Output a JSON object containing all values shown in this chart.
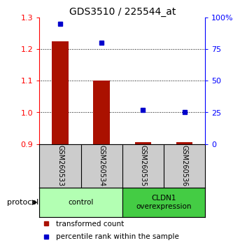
{
  "title": "GDS3510 / 225544_at",
  "samples": [
    "GSM260533",
    "GSM260534",
    "GSM260535",
    "GSM260536"
  ],
  "red_values": [
    1.225,
    1.1,
    0.905,
    0.905
  ],
  "blue_values": [
    95,
    80,
    27,
    25
  ],
  "red_baseline": 0.9,
  "ylim_left": [
    0.9,
    1.3
  ],
  "ylim_right": [
    0,
    100
  ],
  "yticks_left": [
    0.9,
    1.0,
    1.1,
    1.2,
    1.3
  ],
  "yticks_right": [
    0,
    25,
    50,
    75,
    100
  ],
  "ytick_labels_right": [
    "0",
    "25",
    "50",
    "75",
    "100%"
  ],
  "groups": [
    {
      "label": "control",
      "samples": [
        0,
        1
      ],
      "color": "#b3ffb3"
    },
    {
      "label": "CLDN1\noverexpression",
      "samples": [
        2,
        3
      ],
      "color": "#44cc44"
    }
  ],
  "protocol_label": "protocol",
  "legend_red": "transformed count",
  "legend_blue": "percentile rank within the sample",
  "bar_color": "#aa1100",
  "dot_color": "#0000cc",
  "bg_color": "#ffffff",
  "sample_box_color": "#cccccc",
  "title_fontsize": 10,
  "axis_fontsize": 8
}
